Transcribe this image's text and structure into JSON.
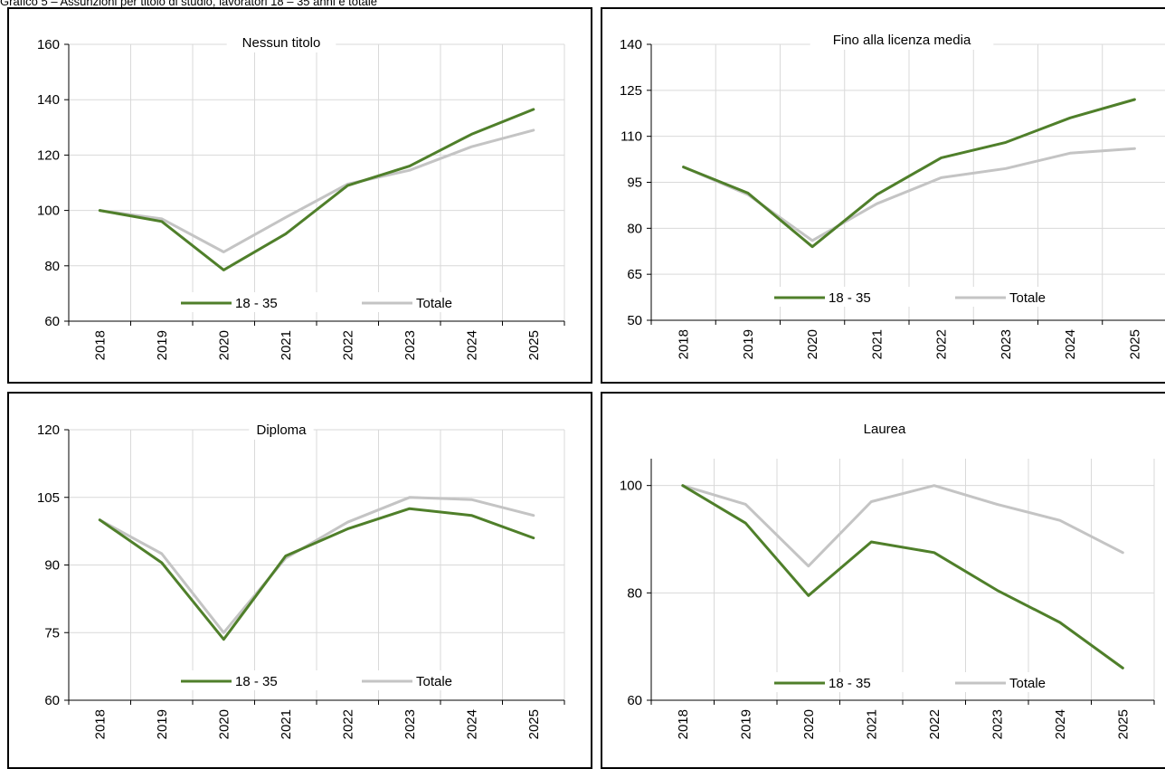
{
  "page_title": "Grafico 5 – Assunzioni per titolo di studio, lavoratori 18 – 35 anni e totale",
  "colors": {
    "series_young": "#4f7f2a",
    "series_total": "#c4c4c4",
    "grid": "#d9d9d9",
    "axis": "#000000"
  },
  "chart_data": [
    {
      "type": "line",
      "title": "Nessun titolo",
      "x": [
        "2018",
        "2019",
        "2020",
        "2021",
        "2022",
        "2023",
        "2024",
        "2025"
      ],
      "ylim": [
        60,
        160
      ],
      "yticks": [
        "60",
        "80",
        "100",
        "120",
        "140",
        "160"
      ],
      "grid": true,
      "legend": "bottom",
      "series": [
        {
          "name": "18 - 35",
          "values": [
            100,
            96,
            78.5,
            91.5,
            109,
            116,
            127.5,
            136.5
          ]
        },
        {
          "name": "Totale",
          "values": [
            100,
            97,
            85,
            97.5,
            109.5,
            114.5,
            123,
            129
          ]
        }
      ]
    },
    {
      "type": "line",
      "title": "Fino alla licenza media",
      "x": [
        "2018",
        "2019",
        "2020",
        "2021",
        "2022",
        "2023",
        "2024",
        "2025"
      ],
      "ylim": [
        50,
        140
      ],
      "yticks": [
        "50",
        "65",
        "80",
        "95",
        "110",
        "125",
        "140"
      ],
      "grid": true,
      "legend": "bottom",
      "series": [
        {
          "name": "18 - 35",
          "values": [
            100,
            91.5,
            74,
            91,
            103,
            108,
            116,
            122
          ]
        },
        {
          "name": "Totale",
          "values": [
            100,
            91,
            76,
            88,
            96.5,
            99.5,
            104.5,
            106
          ]
        }
      ]
    },
    {
      "type": "line",
      "title": "Diploma",
      "x": [
        "2018",
        "2019",
        "2020",
        "2021",
        "2022",
        "2023",
        "2024",
        "2025"
      ],
      "ylim": [
        60,
        120
      ],
      "yticks": [
        "60",
        "75",
        "90",
        "105",
        "120"
      ],
      "grid": true,
      "legend": "bottom",
      "series": [
        {
          "name": "18 - 35",
          "values": [
            100,
            90.5,
            73.5,
            92,
            98,
            102.5,
            101,
            96
          ]
        },
        {
          "name": "Totale",
          "values": [
            100,
            92.5,
            75,
            91.5,
            99.5,
            105,
            104.5,
            101
          ]
        }
      ]
    },
    {
      "type": "line",
      "title": "Laurea",
      "x": [
        "2018",
        "2019",
        "2020",
        "2021",
        "2022",
        "2023",
        "2024",
        "2025"
      ],
      "ylim": [
        60,
        105
      ],
      "yticks": [
        "60",
        "80",
        "100"
      ],
      "grid": true,
      "legend": "bottom",
      "series": [
        {
          "name": "18 - 35",
          "values": [
            100,
            93,
            79.5,
            89.5,
            87.5,
            80.5,
            74.5,
            66
          ]
        },
        {
          "name": "Totale",
          "values": [
            100,
            96.5,
            85,
            97,
            100,
            96.5,
            93.5,
            87.5
          ]
        }
      ]
    }
  ]
}
